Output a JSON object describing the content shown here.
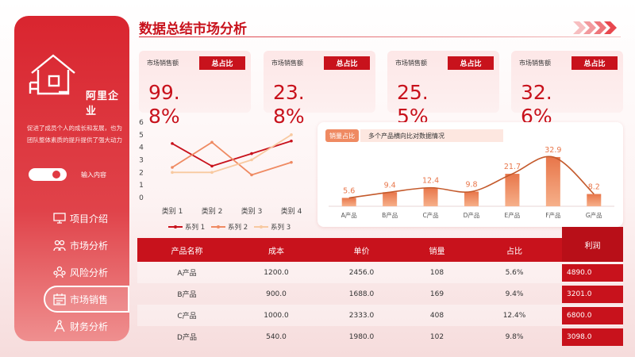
{
  "header": {
    "title": "数据总结市场分析"
  },
  "sidebar": {
    "company": "阿里企业",
    "description": "促进了成员个人的成长和发展，也为团队整体素质的提升提供了强大动力",
    "toggle_label": "输入内容",
    "items": [
      {
        "label": "项目介绍",
        "icon": "monitor-icon"
      },
      {
        "label": "市场分析",
        "icon": "people-icon"
      },
      {
        "label": "风险分析",
        "icon": "team-icon"
      },
      {
        "label": "市场销售",
        "icon": "calendar-icon",
        "active": true
      },
      {
        "label": "财务分析",
        "icon": "compass-icon"
      }
    ]
  },
  "kpis": [
    {
      "label": "市场销售额",
      "tag": "总占比",
      "value": "99.8%"
    },
    {
      "label": "市场销售额",
      "tag": "总占比",
      "value": "23.8%"
    },
    {
      "label": "市场销售额",
      "tag": "总占比",
      "value": "25.5%"
    },
    {
      "label": "市场销售额",
      "tag": "总占比",
      "value": "32.6%"
    }
  ],
  "bar_panel": {
    "tag": "销量占比",
    "subtitle": "多个产品横向比对数据情况"
  },
  "chart_data": [
    {
      "type": "line",
      "categories": [
        "类别 1",
        "类别 2",
        "类别 3",
        "类别 4"
      ],
      "ylim": [
        0,
        6
      ],
      "yticks": [
        0,
        1,
        2,
        3,
        4,
        5,
        6
      ],
      "legend": "bottom",
      "series": [
        {
          "name": "系列 1",
          "values": [
            4.3,
            2.5,
            3.5,
            4.5
          ],
          "color": "#c8121c"
        },
        {
          "name": "系列 2",
          "values": [
            2.4,
            4.4,
            1.8,
            2.8
          ],
          "color": "#ef8a62"
        },
        {
          "name": "系列 3",
          "values": [
            2.0,
            2.0,
            3.0,
            5.0
          ],
          "color": "#f8c9a0"
        }
      ]
    },
    {
      "type": "bar",
      "categories": [
        "A产品",
        "B产品",
        "C产品",
        "D产品",
        "E产品",
        "F产品",
        "G产品"
      ],
      "values": [
        5.6,
        9.4,
        12.4,
        9.8,
        21.7,
        32.9,
        8.2
      ],
      "trend_line": true,
      "colors": {
        "bar_light": "#f6b08a",
        "bar_dark": "#e8764a",
        "line": "#c45a2c"
      }
    }
  ],
  "table": {
    "headers": [
      "产品名称",
      "成本",
      "单价",
      "销量",
      "占比",
      "利润"
    ],
    "rows": [
      [
        "A产品",
        "1200.0",
        "2456.0",
        "108",
        "5.6%",
        "4890.0"
      ],
      [
        "B产品",
        "900.0",
        "1688.0",
        "169",
        "9.4%",
        "3201.0"
      ],
      [
        "C产品",
        "1000.0",
        "2333.0",
        "408",
        "12.4%",
        "6800.0"
      ],
      [
        "D产品",
        "540.0",
        "1980.0",
        "102",
        "9.8%",
        "3098.0"
      ]
    ]
  },
  "colors": {
    "primary": "#c8121c",
    "accent": "#ef8a62"
  }
}
